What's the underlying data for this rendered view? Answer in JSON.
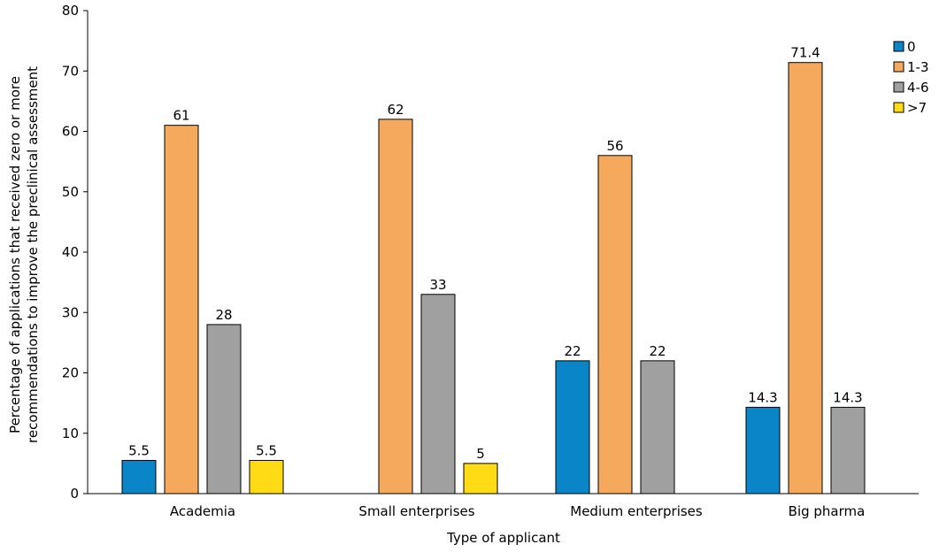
{
  "chart_data": {
    "type": "bar",
    "categories": [
      "Academia",
      "Small enterprises",
      "Medium enterprises",
      "Big pharma"
    ],
    "series": [
      {
        "name": "0",
        "color": "#0a86c8",
        "values": [
          5.5,
          null,
          22,
          14.3
        ],
        "labels": [
          "5.5",
          null,
          "22",
          "14.3"
        ]
      },
      {
        "name": "1-3",
        "color": "#f5a95d",
        "values": [
          61,
          62,
          56,
          71.4
        ],
        "labels": [
          "61",
          "62",
          "56",
          "71.4"
        ]
      },
      {
        "name": "4-6",
        "color": "#a0a0a0",
        "values": [
          28,
          33,
          22,
          14.3
        ],
        "labels": [
          "28",
          "33",
          "22",
          "14.3"
        ]
      },
      {
        "name": ">7",
        "color": "#ffdb15",
        "values": [
          5.5,
          5,
          null,
          null
        ],
        "labels": [
          "5.5",
          "5",
          null,
          null
        ]
      }
    ],
    "xlabel": "Type of applicant",
    "ylabel_lines": [
      "Percentage of applications that received zero or more",
      "recommendations to improve the preclinical assessment"
    ],
    "ylim": [
      0,
      80
    ],
    "yticks": [
      0,
      10,
      20,
      30,
      40,
      50,
      60,
      70,
      80
    ],
    "grid": false,
    "legend_position": "top-right"
  }
}
